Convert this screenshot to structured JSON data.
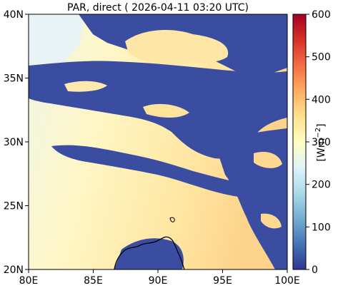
{
  "title": "PAR, direct ( 2026-04-11 03:20 UTC)",
  "colorbar": {
    "label_prefix": "[Wm",
    "label_exp": "−2",
    "label_suffix": "]",
    "min": 0,
    "max": 600,
    "ticks": [
      "0",
      "100",
      "200",
      "300",
      "400",
      "500",
      "600"
    ],
    "colors": [
      "#313695",
      "#4575b4",
      "#74add1",
      "#abd9e9",
      "#e0f3f8",
      "#ffffbf",
      "#fee090",
      "#fdae61",
      "#f46d43",
      "#d73027",
      "#a50026"
    ]
  },
  "axes": {
    "x_ticks": [
      "80E",
      "85E",
      "90E",
      "95E",
      "100E"
    ],
    "y_ticks": [
      "20N",
      "25N",
      "30N",
      "35N",
      "40N"
    ],
    "lon_range": [
      80,
      100
    ],
    "lat_range": [
      20,
      40
    ]
  },
  "colors": {
    "cloud": "#3a4da0",
    "clear_low": "#eef6e8",
    "clear_mid": "#fff4c0",
    "clear_high": "#fdd88c",
    "coastline": "#000000"
  }
}
